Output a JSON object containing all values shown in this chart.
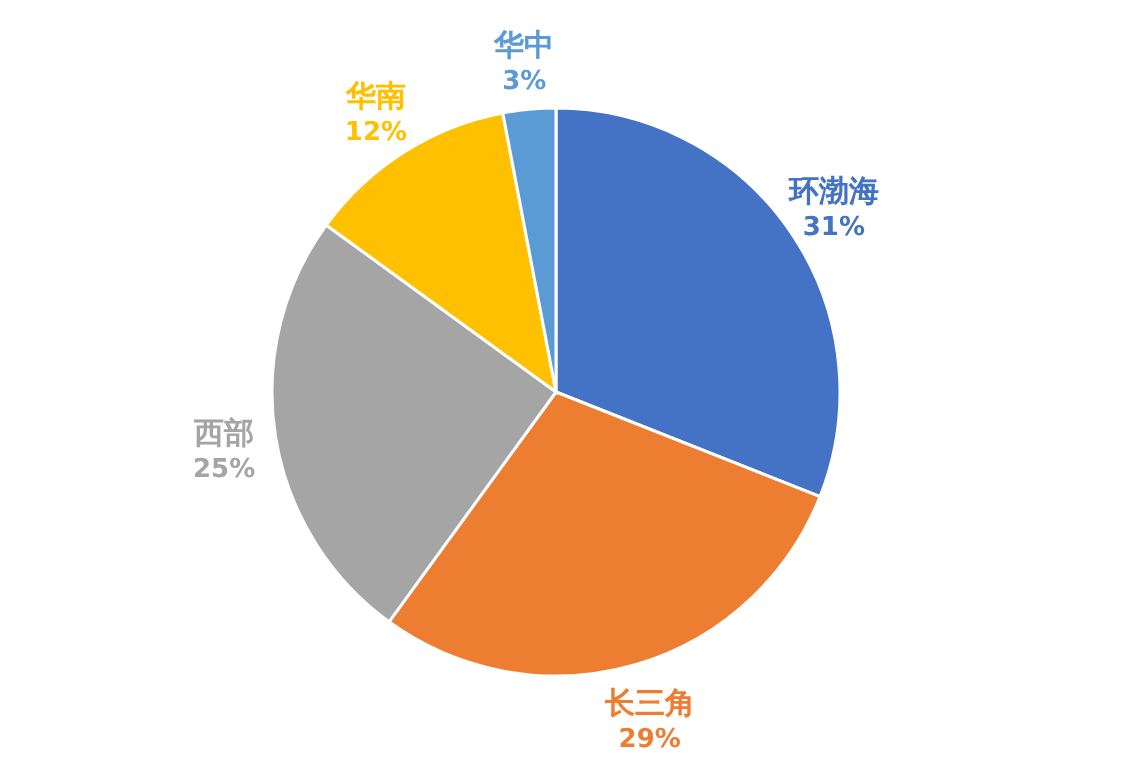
{
  "chart_data": {
    "type": "pie",
    "categories": [
      "环渤海",
      "长三角",
      "西部",
      "华南",
      "华中"
    ],
    "values": [
      31,
      29,
      25,
      12,
      3
    ],
    "value_labels": [
      "31%",
      "29%",
      "25%",
      "12%",
      "3%"
    ],
    "colors": [
      "#4472c4",
      "#ed7d31",
      "#a5a5a5",
      "#ffc000",
      "#5b9bd5"
    ],
    "legend": false
  }
}
